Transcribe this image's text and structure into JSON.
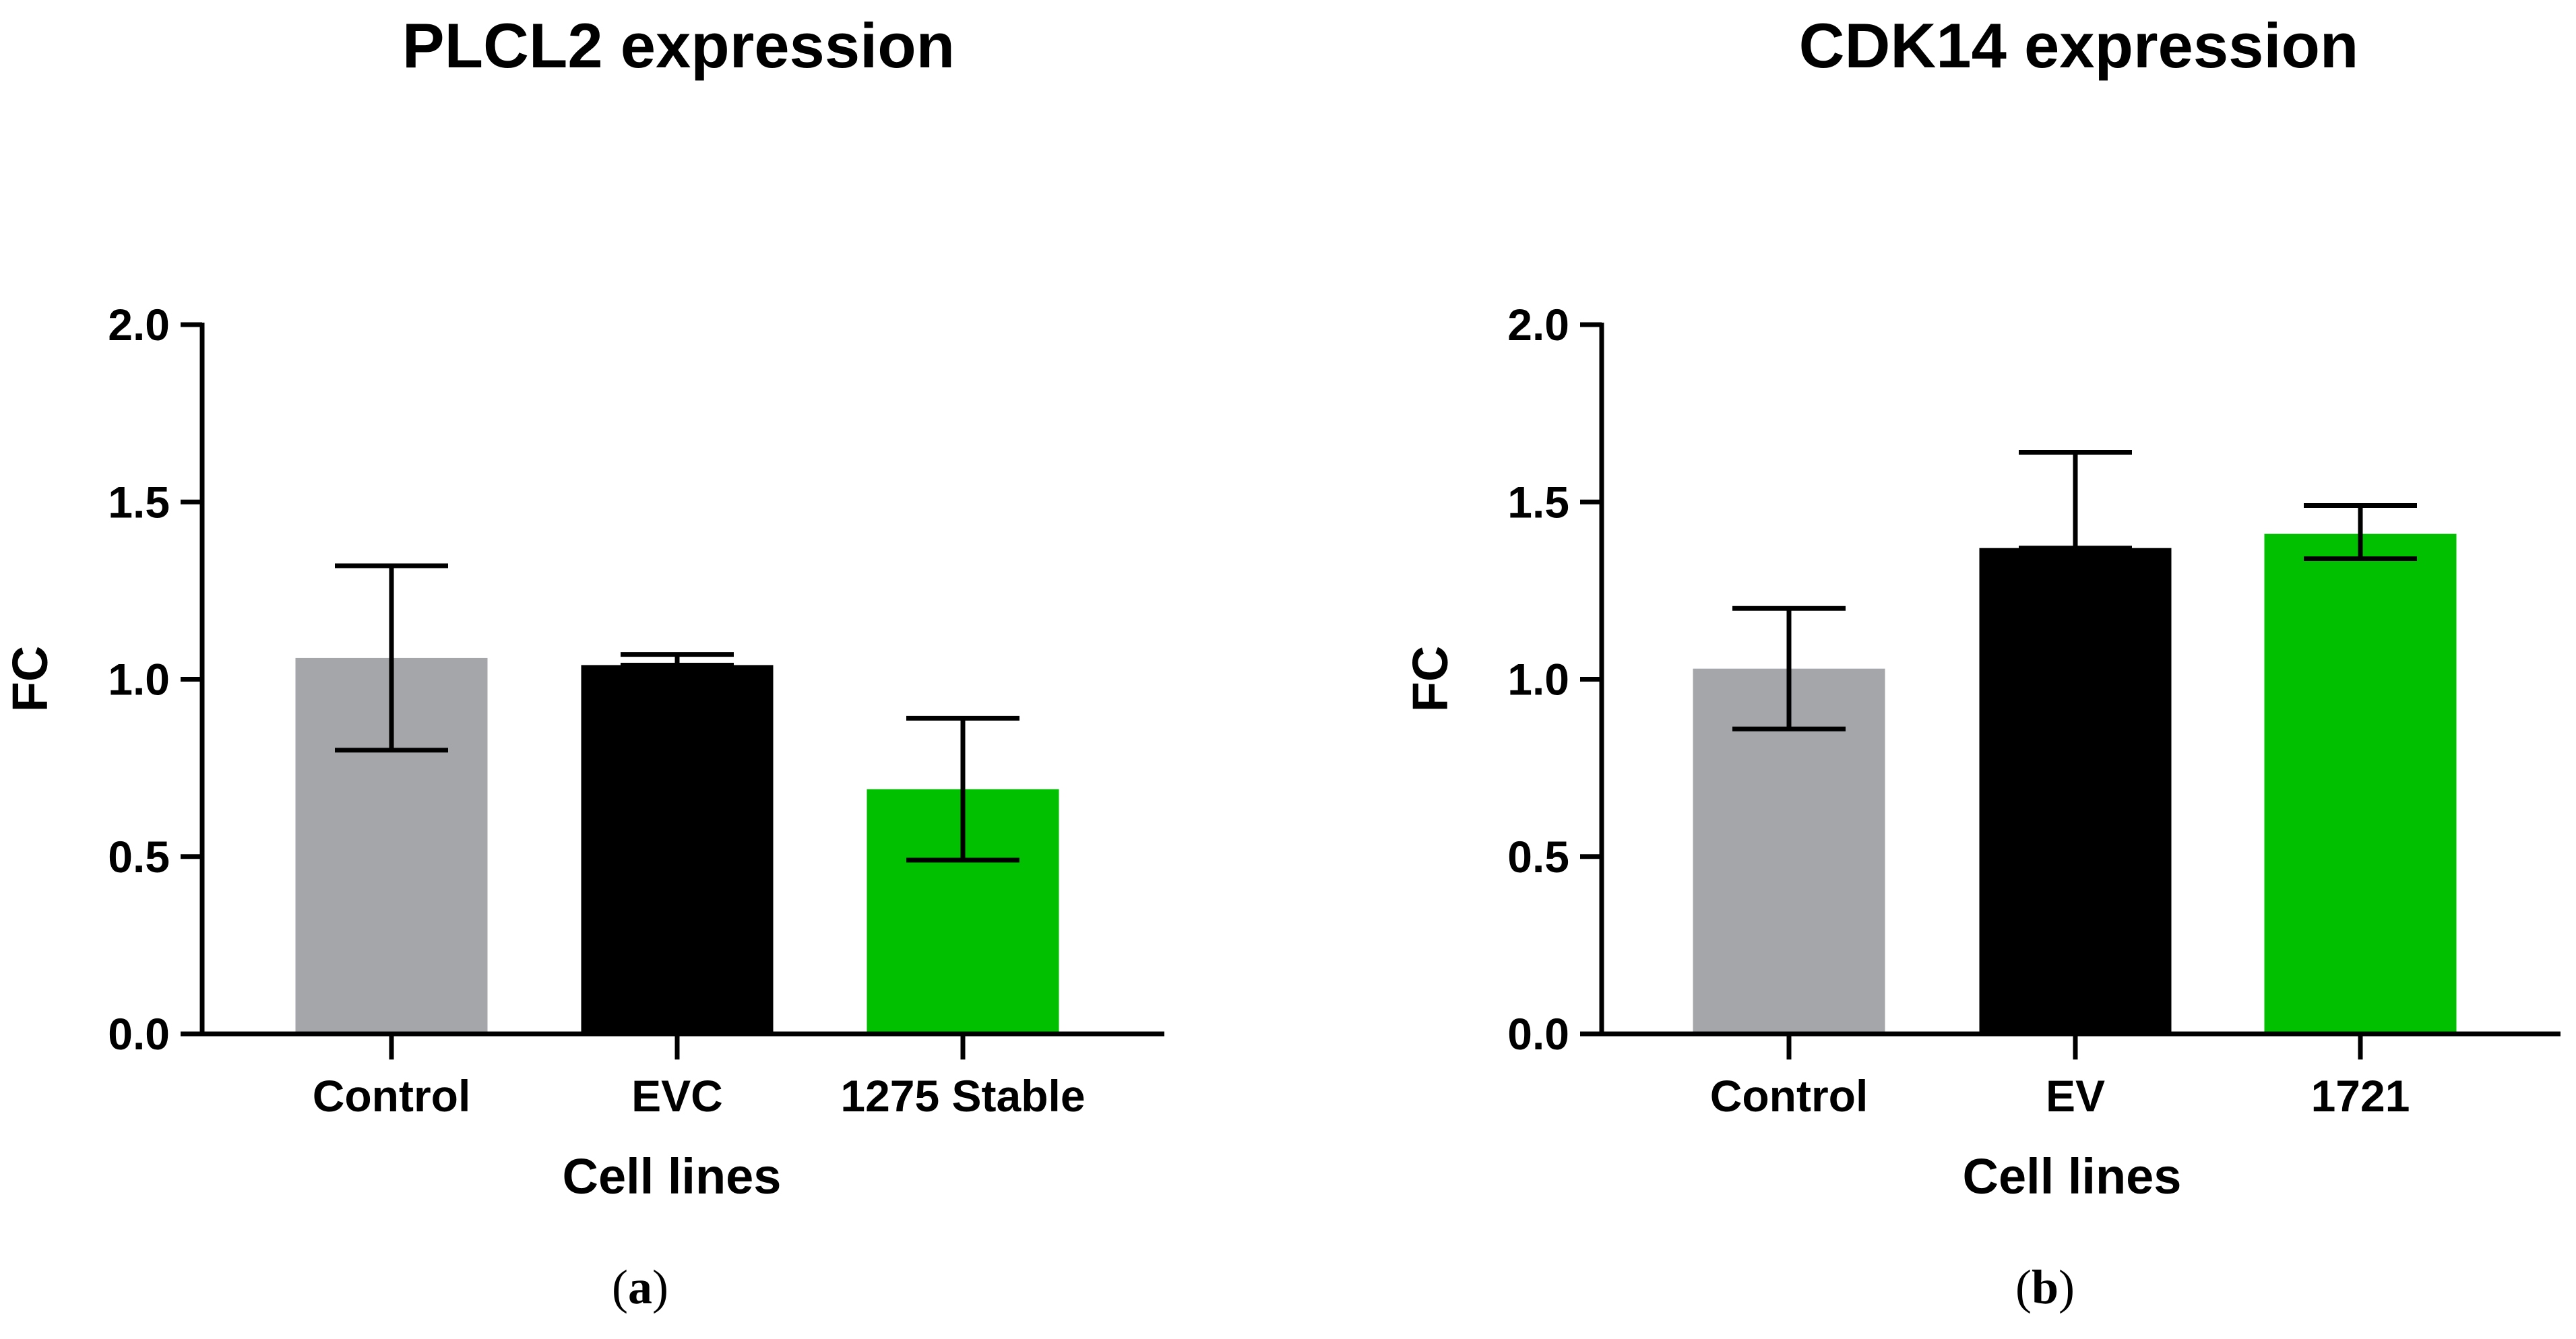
{
  "chart_data": [
    {
      "type": "bar",
      "title": "PLCL2 expression",
      "xlabel": "Cell lines",
      "ylabel": "FC",
      "ylim": [
        0,
        2.0
      ],
      "yticks": [
        "0.0",
        "0.5",
        "1.0",
        "1.5",
        "2.0"
      ],
      "categories": [
        "Control",
        "EVC",
        "1275 Stable"
      ],
      "values": [
        1.06,
        1.04,
        0.69
      ],
      "error_upper": [
        1.32,
        1.07,
        0.89
      ],
      "error_lower": [
        0.8,
        1.04,
        0.49
      ],
      "colors": [
        "#a5a6a9",
        "#000000",
        "#00c000"
      ],
      "panel_label": "a"
    },
    {
      "type": "bar",
      "title": "CDK14 expression",
      "xlabel": "Cell lines",
      "ylabel": "FC",
      "ylim": [
        0,
        2.0
      ],
      "yticks": [
        "0.0",
        "0.5",
        "1.0",
        "1.5",
        "2.0"
      ],
      "categories": [
        "Control",
        "EV",
        "1721"
      ],
      "values": [
        1.03,
        1.37,
        1.41
      ],
      "error_upper": [
        1.2,
        1.64,
        1.49
      ],
      "error_lower": [
        0.86,
        1.37,
        1.34
      ],
      "colors": [
        "#a5a6a9",
        "#000000",
        "#00c000"
      ],
      "panel_label": "b"
    }
  ]
}
